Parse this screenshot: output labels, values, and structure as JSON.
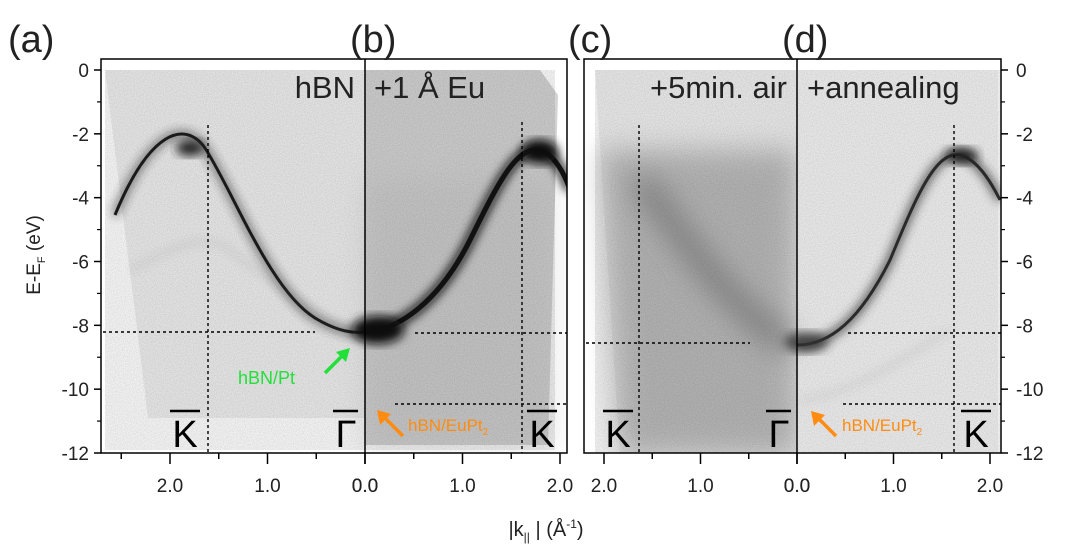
{
  "figure": {
    "panels": [
      {
        "id": "a",
        "label": "(a)",
        "title": "hBN"
      },
      {
        "id": "b",
        "label": "(b)",
        "title": "+1 Å Eu"
      },
      {
        "id": "c",
        "label": "(c)",
        "title": "+5min. air"
      },
      {
        "id": "d",
        "label": "(d)",
        "title": "+annealing"
      }
    ],
    "y_axis": {
      "label_main": "E-E",
      "label_sub": "F",
      "label_unit": " (eV)"
    },
    "x_axis": {
      "label_pre": "|k",
      "label_sub": "||",
      "label_mid": " | (Å",
      "label_sup": "-1",
      "label_post": ")"
    },
    "point_labels": {
      "K": "K",
      "Gamma": "Γ"
    },
    "annotations": {
      "hbn_pt": "hBN/Pt",
      "hbn_eupt2_main": "hBN/EuPt",
      "hbn_eupt2_sub": "2"
    },
    "colors": {
      "green": "#22e03a",
      "orange": "#ff8c10",
      "text": "#222222"
    }
  },
  "chart_data": {
    "type": "heatmap",
    "description_axes": {
      "x_unit": "Å^-1",
      "y_unit": "eV"
    },
    "ylim": [
      -12,
      0.3
    ],
    "y_ticks": [
      0,
      -2,
      -4,
      -6,
      -8,
      -10,
      -12
    ],
    "x_ticks_left": [
      2.0,
      1.0,
      0.0
    ],
    "x_ticks_right": [
      0.0,
      1.0,
      2.0
    ],
    "K_point_k": 1.6,
    "hBN_Pt_band_bottom_eV": -8.3,
    "hBN_EuPt2_band_bottom_eV": -10.5,
    "air_band_bottom_eV": -8.6,
    "K_band_top_eV": -2.4
  }
}
